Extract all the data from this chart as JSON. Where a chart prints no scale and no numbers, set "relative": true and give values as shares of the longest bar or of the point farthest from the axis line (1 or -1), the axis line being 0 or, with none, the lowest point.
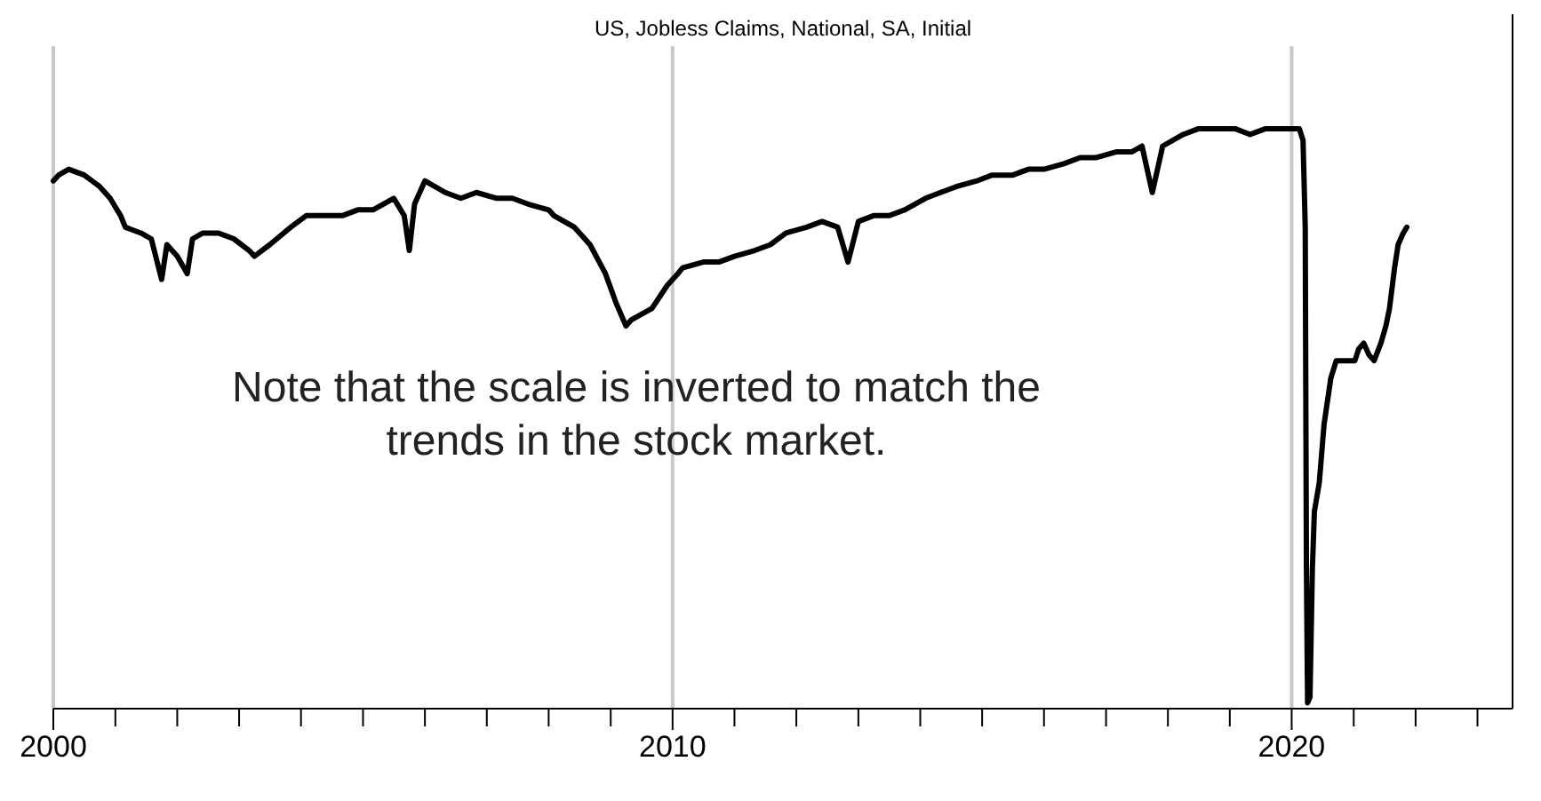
{
  "chart_data": {
    "type": "line",
    "title": "US, Jobless Claims, National, SA, Initial",
    "relative": true,
    "grid": "x",
    "xlim": [
      "2000-01-01",
      "2023-07-27"
    ],
    "xticks": [
      {
        "value": "2000",
        "label": "2000"
      },
      {
        "value": "2001",
        "label": null
      },
      {
        "value": "2002",
        "label": null
      },
      {
        "value": "2003",
        "label": null
      },
      {
        "value": "2004",
        "label": null
      },
      {
        "value": "2005",
        "label": null
      },
      {
        "value": "2006",
        "label": null
      },
      {
        "value": "2007",
        "label": null
      },
      {
        "value": "2008",
        "label": null
      },
      {
        "value": "2009",
        "label": null
      },
      {
        "value": "2010",
        "label": "2010"
      },
      {
        "value": "2011",
        "label": null
      },
      {
        "value": "2012",
        "label": null
      },
      {
        "value": "2013",
        "label": null
      },
      {
        "value": "2014",
        "label": null
      },
      {
        "value": "2015",
        "label": null
      },
      {
        "value": "2016",
        "label": null
      },
      {
        "value": "2017",
        "label": null
      },
      {
        "value": "2018",
        "label": null
      },
      {
        "value": "2019",
        "label": null
      },
      {
        "value": "2020",
        "label": "2020"
      },
      {
        "value": "2021",
        "label": null
      },
      {
        "value": "2022",
        "label": null
      },
      {
        "value": "2023",
        "label": null
      }
    ],
    "x": [
      "2000-01",
      "2000-02",
      "2000-04",
      "2000-07",
      "2000-10",
      "2000-12",
      "2001-02",
      "2001-03",
      "2001-06",
      "2001-08",
      "2001-10",
      "2001-11",
      "2002-01",
      "2002-03",
      "2002-04",
      "2002-06",
      "2002-09",
      "2002-12",
      "2003-03",
      "2003-04",
      "2003-07",
      "2003-11",
      "2004-02",
      "2004-05",
      "2004-09",
      "2004-12",
      "2005-03",
      "2005-07",
      "2005-09",
      "2005-10",
      "2005-11",
      "2006-01",
      "2006-05",
      "2006-08",
      "2006-11",
      "2007-03",
      "2007-06",
      "2007-09",
      "2008-01",
      "2008-02",
      "2008-06",
      "2008-09",
      "2008-12",
      "2009-02",
      "2009-04",
      "2009-05",
      "2009-09",
      "2009-12",
      "2010-02",
      "2010-03",
      "2010-07",
      "2010-10",
      "2011-01",
      "2011-05",
      "2011-08",
      "2011-11",
      "2012-03",
      "2012-06",
      "2012-09",
      "2012-11",
      "2013-01",
      "2013-04",
      "2013-07",
      "2013-10",
      "2014-02",
      "2014-05",
      "2014-08",
      "2014-12",
      "2015-03",
      "2015-07",
      "2015-10",
      "2016-01",
      "2016-05",
      "2016-08",
      "2016-11",
      "2017-03",
      "2017-06",
      "2017-08",
      "2017-10",
      "2017-12",
      "2018-04",
      "2018-07",
      "2018-10",
      "2019-02",
      "2019-05",
      "2019-08",
      "2019-12",
      "2020-02-15",
      "2020-03-08",
      "2020-03-21",
      "2020-03-28",
      "2020-04-04",
      "2020-04-18",
      "2020-05-02",
      "2020-05-14",
      "2020-06-12",
      "2020-07-10",
      "2020-08-19",
      "2020-09-20",
      "2021-01-08",
      "2021-01-30",
      "2021-03-01",
      "2021-04-01",
      "2021-05-01",
      "2021-06-10",
      "2021-07-10",
      "2021-07-31",
      "2021-08-30",
      "2021-09-20",
      "2021-10-20",
      "2021-11-10"
    ],
    "series": [
      {
        "color": "#000000",
        "values": [
          0.91,
          0.92,
          0.93,
          0.92,
          0.9,
          0.88,
          0.85,
          0.83,
          0.82,
          0.81,
          0.74,
          0.8,
          0.78,
          0.75,
          0.81,
          0.82,
          0.82,
          0.81,
          0.79,
          0.78,
          0.8,
          0.83,
          0.85,
          0.85,
          0.85,
          0.86,
          0.86,
          0.88,
          0.85,
          0.79,
          0.87,
          0.91,
          0.89,
          0.88,
          0.89,
          0.88,
          0.88,
          0.87,
          0.86,
          0.85,
          0.83,
          0.8,
          0.75,
          0.7,
          0.66,
          0.67,
          0.69,
          0.73,
          0.75,
          0.76,
          0.77,
          0.77,
          0.78,
          0.79,
          0.8,
          0.82,
          0.83,
          0.84,
          0.83,
          0.77,
          0.84,
          0.85,
          0.85,
          0.86,
          0.88,
          0.89,
          0.9,
          0.91,
          0.92,
          0.92,
          0.93,
          0.93,
          0.94,
          0.95,
          0.95,
          0.96,
          0.96,
          0.97,
          0.89,
          0.97,
          0.99,
          1.0,
          1.0,
          1.0,
          0.99,
          1.0,
          1.0,
          1.0,
          0.98,
          0.83,
          0.24,
          0.01,
          0.02,
          0.24,
          0.34,
          0.39,
          0.49,
          0.57,
          0.6,
          0.6,
          0.62,
          0.63,
          0.61,
          0.6,
          0.63,
          0.66,
          0.69,
          0.76,
          0.8,
          0.82,
          0.83
        ]
      }
    ],
    "annotations": [
      "Note that the scale is inverted to match the trends in the stock market."
    ]
  }
}
